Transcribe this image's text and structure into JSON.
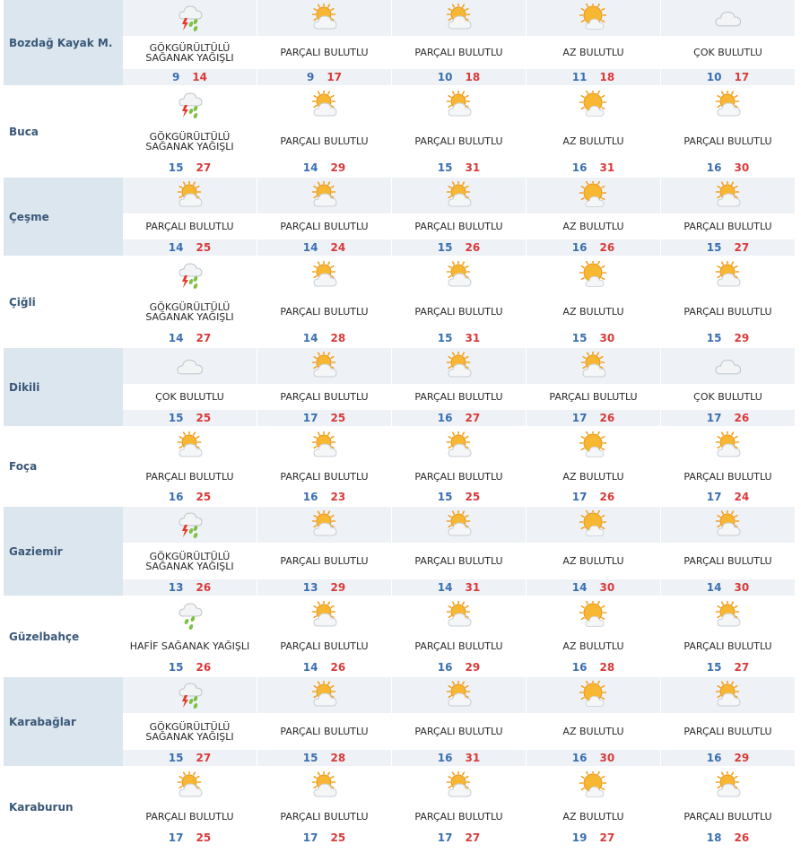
{
  "forecast": {
    "rows": [
      {
        "city": "Bozdağ Kayak M.",
        "days": [
          {
            "icon": "thunderstorm-rain-icon",
            "desc": "GÖKGÜRÜLTÜLÜ\nSAĞANAK YAĞIŞLI",
            "min": "9",
            "max": "14"
          },
          {
            "icon": "partly-cloudy-icon",
            "desc": "PARÇALI BULUTLU",
            "min": "9",
            "max": "17"
          },
          {
            "icon": "partly-cloudy-icon",
            "desc": "PARÇALI BULUTLU",
            "min": "10",
            "max": "18"
          },
          {
            "icon": "mostly-sunny-icon",
            "desc": "AZ BULUTLU",
            "min": "11",
            "max": "18"
          },
          {
            "icon": "cloudy-icon",
            "desc": "ÇOK BULUTLU",
            "min": "10",
            "max": "17"
          }
        ]
      },
      {
        "city": "Buca",
        "days": [
          {
            "icon": "thunderstorm-rain-icon",
            "desc": "GÖKGÜRÜLTÜLÜ\nSAĞANAK YAĞIŞLI",
            "min": "15",
            "max": "27"
          },
          {
            "icon": "partly-cloudy-icon",
            "desc": "PARÇALI BULUTLU",
            "min": "14",
            "max": "29"
          },
          {
            "icon": "partly-cloudy-icon",
            "desc": "PARÇALI BULUTLU",
            "min": "15",
            "max": "31"
          },
          {
            "icon": "mostly-sunny-icon",
            "desc": "AZ BULUTLU",
            "min": "16",
            "max": "31"
          },
          {
            "icon": "partly-cloudy-icon",
            "desc": "PARÇALI BULUTLU",
            "min": "16",
            "max": "30"
          }
        ]
      },
      {
        "city": "Çeşme",
        "days": [
          {
            "icon": "partly-cloudy-icon",
            "desc": "PARÇALI BULUTLU",
            "min": "14",
            "max": "25"
          },
          {
            "icon": "partly-cloudy-icon",
            "desc": "PARÇALI BULUTLU",
            "min": "14",
            "max": "24"
          },
          {
            "icon": "partly-cloudy-icon",
            "desc": "PARÇALI BULUTLU",
            "min": "15",
            "max": "26"
          },
          {
            "icon": "mostly-sunny-icon",
            "desc": "AZ BULUTLU",
            "min": "16",
            "max": "26"
          },
          {
            "icon": "partly-cloudy-icon",
            "desc": "PARÇALI BULUTLU",
            "min": "15",
            "max": "27"
          }
        ]
      },
      {
        "city": "Çiğli",
        "days": [
          {
            "icon": "thunderstorm-rain-icon",
            "desc": "GÖKGÜRÜLTÜLÜ\nSAĞANAK YAĞIŞLI",
            "min": "14",
            "max": "27"
          },
          {
            "icon": "partly-cloudy-icon",
            "desc": "PARÇALI BULUTLU",
            "min": "14",
            "max": "28"
          },
          {
            "icon": "partly-cloudy-icon",
            "desc": "PARÇALI BULUTLU",
            "min": "15",
            "max": "31"
          },
          {
            "icon": "mostly-sunny-icon",
            "desc": "AZ BULUTLU",
            "min": "15",
            "max": "30"
          },
          {
            "icon": "partly-cloudy-icon",
            "desc": "PARÇALI BULUTLU",
            "min": "15",
            "max": "29"
          }
        ]
      },
      {
        "city": "Dikili",
        "days": [
          {
            "icon": "cloudy-icon",
            "desc": "ÇOK BULUTLU",
            "min": "15",
            "max": "25"
          },
          {
            "icon": "partly-cloudy-icon",
            "desc": "PARÇALI BULUTLU",
            "min": "17",
            "max": "25"
          },
          {
            "icon": "partly-cloudy-icon",
            "desc": "PARÇALI BULUTLU",
            "min": "16",
            "max": "27"
          },
          {
            "icon": "partly-cloudy-icon",
            "desc": "PARÇALI BULUTLU",
            "min": "17",
            "max": "26"
          },
          {
            "icon": "cloudy-icon",
            "desc": "ÇOK BULUTLU",
            "min": "17",
            "max": "26"
          }
        ]
      },
      {
        "city": "Foça",
        "days": [
          {
            "icon": "partly-cloudy-icon",
            "desc": "PARÇALI BULUTLU",
            "min": "16",
            "max": "25"
          },
          {
            "icon": "partly-cloudy-icon",
            "desc": "PARÇALI BULUTLU",
            "min": "16",
            "max": "23"
          },
          {
            "icon": "partly-cloudy-icon",
            "desc": "PARÇALI BULUTLU",
            "min": "15",
            "max": "25"
          },
          {
            "icon": "mostly-sunny-icon",
            "desc": "AZ BULUTLU",
            "min": "17",
            "max": "26"
          },
          {
            "icon": "partly-cloudy-icon",
            "desc": "PARÇALI BULUTLU",
            "min": "17",
            "max": "24"
          }
        ]
      },
      {
        "city": "Gaziemir",
        "days": [
          {
            "icon": "thunderstorm-rain-icon",
            "desc": "GÖKGÜRÜLTÜLÜ\nSAĞANAK YAĞIŞLI",
            "min": "13",
            "max": "26"
          },
          {
            "icon": "partly-cloudy-icon",
            "desc": "PARÇALI BULUTLU",
            "min": "13",
            "max": "29"
          },
          {
            "icon": "partly-cloudy-icon",
            "desc": "PARÇALI BULUTLU",
            "min": "14",
            "max": "31"
          },
          {
            "icon": "mostly-sunny-icon",
            "desc": "AZ BULUTLU",
            "min": "14",
            "max": "30"
          },
          {
            "icon": "partly-cloudy-icon",
            "desc": "PARÇALI BULUTLU",
            "min": "14",
            "max": "30"
          }
        ]
      },
      {
        "city": "Güzelbahçe",
        "days": [
          {
            "icon": "light-shower-icon",
            "desc": "HAFİF SAĞANAK YAĞIŞLI",
            "min": "15",
            "max": "26"
          },
          {
            "icon": "partly-cloudy-icon",
            "desc": "PARÇALI BULUTLU",
            "min": "14",
            "max": "26"
          },
          {
            "icon": "partly-cloudy-icon",
            "desc": "PARÇALI BULUTLU",
            "min": "16",
            "max": "29"
          },
          {
            "icon": "mostly-sunny-icon",
            "desc": "AZ BULUTLU",
            "min": "16",
            "max": "28"
          },
          {
            "icon": "partly-cloudy-icon",
            "desc": "PARÇALI BULUTLU",
            "min": "15",
            "max": "27"
          }
        ]
      },
      {
        "city": "Karabağlar",
        "days": [
          {
            "icon": "thunderstorm-rain-icon",
            "desc": "GÖKGÜRÜLTÜLÜ\nSAĞANAK YAĞIŞLI",
            "min": "15",
            "max": "27"
          },
          {
            "icon": "partly-cloudy-icon",
            "desc": "PARÇALI BULUTLU",
            "min": "15",
            "max": "28"
          },
          {
            "icon": "partly-cloudy-icon",
            "desc": "PARÇALI BULUTLU",
            "min": "16",
            "max": "31"
          },
          {
            "icon": "mostly-sunny-icon",
            "desc": "AZ BULUTLU",
            "min": "16",
            "max": "30"
          },
          {
            "icon": "partly-cloudy-icon",
            "desc": "PARÇALI BULUTLU",
            "min": "16",
            "max": "29"
          }
        ]
      },
      {
        "city": "Karaburun",
        "days": [
          {
            "icon": "partly-cloudy-icon",
            "desc": "PARÇALI BULUTLU",
            "min": "17",
            "max": "25"
          },
          {
            "icon": "partly-cloudy-icon",
            "desc": "PARÇALI BULUTLU",
            "min": "17",
            "max": "25"
          },
          {
            "icon": "partly-cloudy-icon",
            "desc": "PARÇALI BULUTLU",
            "min": "17",
            "max": "27"
          },
          {
            "icon": "mostly-sunny-icon",
            "desc": "AZ BULUTLU",
            "min": "19",
            "max": "27"
          },
          {
            "icon": "partly-cloudy-icon",
            "desc": "PARÇALI BULUTLU",
            "min": "18",
            "max": "26"
          }
        ]
      }
    ]
  },
  "colors": {
    "city_text": "#3a5878",
    "min_temp": "#3a6fb0",
    "max_temp": "#d93a3a",
    "shade": "#dce6ef"
  }
}
